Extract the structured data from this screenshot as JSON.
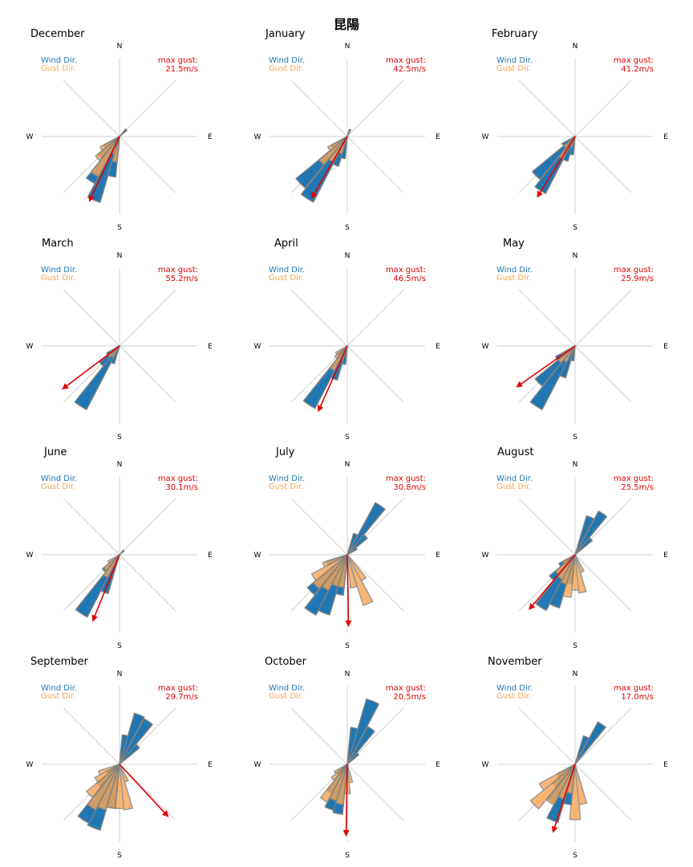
{
  "page_title": "昆陽",
  "chart_data": {
    "type": "polar-bar (wind rose)",
    "title": "昆陽",
    "legend": {
      "wind": "Wind Dir.",
      "gust": "Gust Dir."
    },
    "cardinals": [
      "N",
      "E",
      "S",
      "W"
    ],
    "gust_label": "max gust:",
    "colors": {
      "wind": "#1f77b4",
      "gust": "#f7a656",
      "arrow": "#e00000",
      "edge": "#808080"
    },
    "direction_unit": "degrees clockwise from north",
    "panels": [
      {
        "month": "December",
        "max_gust": "21.5m/s",
        "gust_dir": 205,
        "wind": [
          {
            "d": 202,
            "r": 0.93
          },
          {
            "d": 213,
            "r": 0.72
          },
          {
            "d": 191,
            "r": 0.55
          },
          {
            "d": 225,
            "r": 0.38
          },
          {
            "d": 236,
            "r": 0.25
          },
          {
            "d": 45,
            "r": 0.13
          }
        ],
        "gust": [
          {
            "d": 213,
            "r": 0.62
          },
          {
            "d": 225,
            "r": 0.42
          },
          {
            "d": 191,
            "r": 0.35
          },
          {
            "d": 236,
            "r": 0.3
          },
          {
            "d": 202,
            "r": 0.25
          }
        ]
      },
      {
        "month": "January",
        "max_gust": "42.5m/s",
        "gust_dir": 210,
        "wind": [
          {
            "d": 213,
            "r": 1.0
          },
          {
            "d": 225,
            "r": 0.9
          },
          {
            "d": 202,
            "r": 0.42
          },
          {
            "d": 191,
            "r": 0.3
          },
          {
            "d": 236,
            "r": 0.25
          },
          {
            "d": 22,
            "r": 0.1
          }
        ],
        "gust": [
          {
            "d": 225,
            "r": 0.5
          },
          {
            "d": 213,
            "r": 0.4
          },
          {
            "d": 236,
            "r": 0.3
          },
          {
            "d": 202,
            "r": 0.25
          }
        ]
      },
      {
        "month": "February",
        "max_gust": "41.2m/s",
        "gust_dir": 212,
        "wind": [
          {
            "d": 213,
            "r": 0.87
          },
          {
            "d": 225,
            "r": 0.75
          },
          {
            "d": 202,
            "r": 0.35
          },
          {
            "d": 191,
            "r": 0.25
          },
          {
            "d": 236,
            "r": 0.2
          }
        ],
        "gust": [
          {
            "d": 213,
            "r": 0.35
          },
          {
            "d": 225,
            "r": 0.2
          },
          {
            "d": 202,
            "r": 0.15
          }
        ]
      },
      {
        "month": "March",
        "max_gust": "55.2m/s",
        "gust_dir": 233,
        "wind": [
          {
            "d": 213,
            "r": 0.97
          },
          {
            "d": 225,
            "r": 0.35
          },
          {
            "d": 202,
            "r": 0.25
          },
          {
            "d": 236,
            "r": 0.2
          }
        ],
        "gust": [
          {
            "d": 225,
            "r": 0.2
          },
          {
            "d": 236,
            "r": 0.15
          },
          {
            "d": 213,
            "r": 0.18
          }
        ]
      },
      {
        "month": "April",
        "max_gust": "46.5m/s",
        "gust_dir": 204,
        "wind": [
          {
            "d": 213,
            "r": 0.95
          },
          {
            "d": 202,
            "r": 0.48
          },
          {
            "d": 191,
            "r": 0.25
          },
          {
            "d": 225,
            "r": 0.18
          }
        ],
        "gust": [
          {
            "d": 213,
            "r": 0.38
          },
          {
            "d": 225,
            "r": 0.22
          },
          {
            "d": 236,
            "r": 0.18
          },
          {
            "d": 202,
            "r": 0.2
          }
        ]
      },
      {
        "month": "May",
        "max_gust": "25.9m/s",
        "gust_dir": 235,
        "wind": [
          {
            "d": 213,
            "r": 0.97
          },
          {
            "d": 225,
            "r": 0.7
          },
          {
            "d": 202,
            "r": 0.45
          },
          {
            "d": 236,
            "r": 0.3
          },
          {
            "d": 191,
            "r": 0.2
          }
        ],
        "gust": [
          {
            "d": 225,
            "r": 0.3
          },
          {
            "d": 236,
            "r": 0.22
          },
          {
            "d": 213,
            "r": 0.25
          }
        ]
      },
      {
        "month": "June",
        "max_gust": "30.1m/s",
        "gust_dir": 202,
        "wind": [
          {
            "d": 213,
            "r": 0.95
          },
          {
            "d": 202,
            "r": 0.55
          },
          {
            "d": 225,
            "r": 0.3
          },
          {
            "d": 45,
            "r": 0.08
          }
        ],
        "gust": [
          {
            "d": 213,
            "r": 0.35
          },
          {
            "d": 225,
            "r": 0.28
          },
          {
            "d": 236,
            "r": 0.18
          }
        ]
      },
      {
        "month": "July",
        "max_gust": "30.8m/s",
        "gust_dir": 179,
        "wind": [
          {
            "d": 213,
            "r": 0.92
          },
          {
            "d": 202,
            "r": 0.85
          },
          {
            "d": 225,
            "r": 0.7
          },
          {
            "d": 191,
            "r": 0.55
          },
          {
            "d": 34,
            "r": 0.8
          },
          {
            "d": 45,
            "r": 0.35
          },
          {
            "d": 22,
            "r": 0.3
          },
          {
            "d": 56,
            "r": 0.15
          },
          {
            "d": 247,
            "r": 0.3
          }
        ],
        "gust": [
          {
            "d": 236,
            "r": 0.55
          },
          {
            "d": 225,
            "r": 0.6
          },
          {
            "d": 213,
            "r": 0.55
          },
          {
            "d": 202,
            "r": 0.45
          },
          {
            "d": 191,
            "r": 0.45
          },
          {
            "d": 169,
            "r": 0.45
          },
          {
            "d": 157,
            "r": 0.72
          },
          {
            "d": 146,
            "r": 0.4
          },
          {
            "d": 247,
            "r": 0.35
          }
        ]
      },
      {
        "month": "August",
        "max_gust": "25.5m/s",
        "gust_dir": 220,
        "wind": [
          {
            "d": 213,
            "r": 0.85
          },
          {
            "d": 202,
            "r": 0.75
          },
          {
            "d": 225,
            "r": 0.45
          },
          {
            "d": 34,
            "r": 0.67
          },
          {
            "d": 22,
            "r": 0.55
          },
          {
            "d": 45,
            "r": 0.3
          },
          {
            "d": 191,
            "r": 0.4
          },
          {
            "d": 236,
            "r": 0.25
          }
        ],
        "gust": [
          {
            "d": 191,
            "r": 0.58
          },
          {
            "d": 180,
            "r": 0.48
          },
          {
            "d": 169,
            "r": 0.52
          },
          {
            "d": 202,
            "r": 0.42
          },
          {
            "d": 213,
            "r": 0.38
          },
          {
            "d": 225,
            "r": 0.35
          },
          {
            "d": 236,
            "r": 0.2
          },
          {
            "d": 157,
            "r": 0.25
          }
        ]
      },
      {
        "month": "September",
        "max_gust": "29.7m/s",
        "gust_dir": 137,
        "wind": [
          {
            "d": 213,
            "r": 0.9
          },
          {
            "d": 202,
            "r": 0.93
          },
          {
            "d": 191,
            "r": 0.6
          },
          {
            "d": 225,
            "r": 0.4
          },
          {
            "d": 22,
            "r": 0.72
          },
          {
            "d": 34,
            "r": 0.7
          },
          {
            "d": 45,
            "r": 0.35
          },
          {
            "d": 11,
            "r": 0.4
          },
          {
            "d": 236,
            "r": 0.2
          }
        ],
        "gust": [
          {
            "d": 236,
            "r": 0.38
          },
          {
            "d": 225,
            "r": 0.58
          },
          {
            "d": 213,
            "r": 0.7
          },
          {
            "d": 202,
            "r": 0.65
          },
          {
            "d": 191,
            "r": 0.6
          },
          {
            "d": 180,
            "r": 0.6
          },
          {
            "d": 169,
            "r": 0.62
          },
          {
            "d": 157,
            "r": 0.25
          },
          {
            "d": 247,
            "r": 0.3
          }
        ]
      },
      {
        "month": "October",
        "max_gust": "20.5m/s",
        "gust_dir": 181,
        "wind": [
          {
            "d": 22,
            "r": 0.92
          },
          {
            "d": 34,
            "r": 0.58
          },
          {
            "d": 11,
            "r": 0.5
          },
          {
            "d": 45,
            "r": 0.2
          },
          {
            "d": 202,
            "r": 0.65
          },
          {
            "d": 191,
            "r": 0.68
          },
          {
            "d": 213,
            "r": 0.45
          },
          {
            "d": 225,
            "r": 0.18
          }
        ],
        "gust": [
          {
            "d": 213,
            "r": 0.58
          },
          {
            "d": 202,
            "r": 0.52
          },
          {
            "d": 191,
            "r": 0.55
          },
          {
            "d": 180,
            "r": 0.4
          },
          {
            "d": 225,
            "r": 0.28
          },
          {
            "d": 236,
            "r": 0.2
          },
          {
            "d": 169,
            "r": 0.25
          }
        ]
      },
      {
        "month": "November",
        "max_gust": "17.0m/s",
        "gust_dir": 198,
        "wind": [
          {
            "d": 34,
            "r": 0.65
          },
          {
            "d": 22,
            "r": 0.4
          },
          {
            "d": 202,
            "r": 0.82
          },
          {
            "d": 213,
            "r": 0.6
          },
          {
            "d": 191,
            "r": 0.55
          },
          {
            "d": 225,
            "r": 0.4
          },
          {
            "d": 236,
            "r": 0.28
          }
        ],
        "gust": [
          {
            "d": 225,
            "r": 0.78
          },
          {
            "d": 213,
            "r": 0.62
          },
          {
            "d": 236,
            "r": 0.55
          },
          {
            "d": 202,
            "r": 0.5
          },
          {
            "d": 191,
            "r": 0.4
          },
          {
            "d": 180,
            "r": 0.75
          },
          {
            "d": 169,
            "r": 0.55
          }
        ]
      }
    ]
  }
}
